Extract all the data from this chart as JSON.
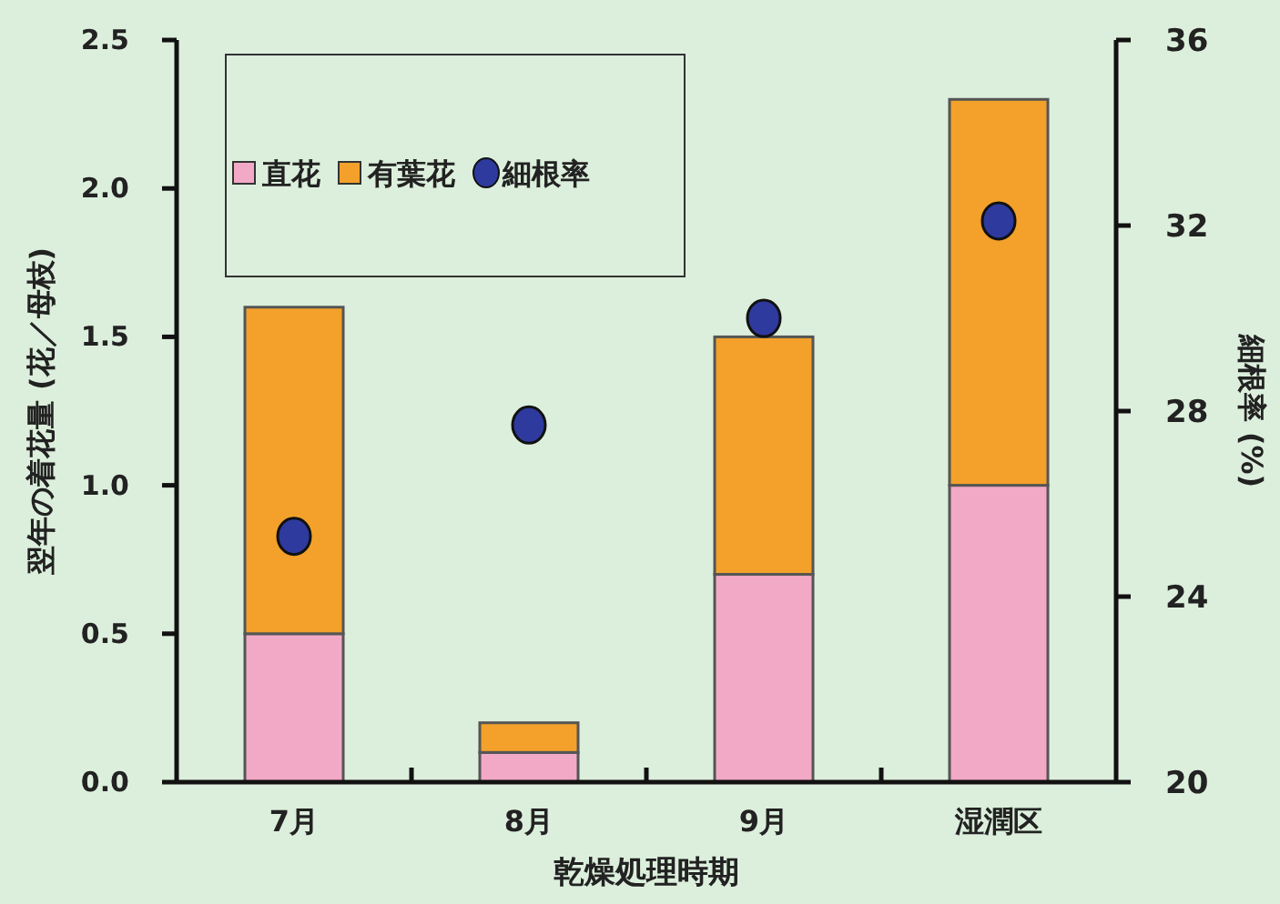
{
  "chart_data": {
    "type": "bar",
    "stacked": true,
    "xlabel": "乾燥処理時期",
    "ylabel": "翌年の着花量 (花／母枝)",
    "y2label": "細根率 (%)",
    "categories": [
      "7月",
      "8月",
      "9月",
      "湿潤区"
    ],
    "series": [
      {
        "name": "直花",
        "color": "#f2a9c6",
        "values": [
          0.5,
          0.1,
          0.7,
          1.0
        ]
      },
      {
        "name": "有葉花",
        "color": "#f3a12a",
        "values": [
          1.1,
          0.1,
          0.8,
          1.3
        ]
      },
      {
        "name": "細根率",
        "type": "scatter",
        "axis": "y2",
        "color": "#2e3a9e",
        "values": [
          25.3,
          27.7,
          30.0,
          32.1
        ]
      }
    ],
    "ylim": [
      0,
      2.5
    ],
    "yticks": [
      {
        "value": 0,
        "label": "0.0"
      },
      0.5,
      {
        "value": 1,
        "label": "1.0"
      },
      1.5,
      {
        "value": 2,
        "label": "2.0"
      },
      2.5
    ],
    "y2lim": [
      20,
      36
    ],
    "y2ticks": [
      20,
      24,
      28,
      32,
      36
    ],
    "legend": "top left",
    "marker": "circle",
    "grid": false
  }
}
